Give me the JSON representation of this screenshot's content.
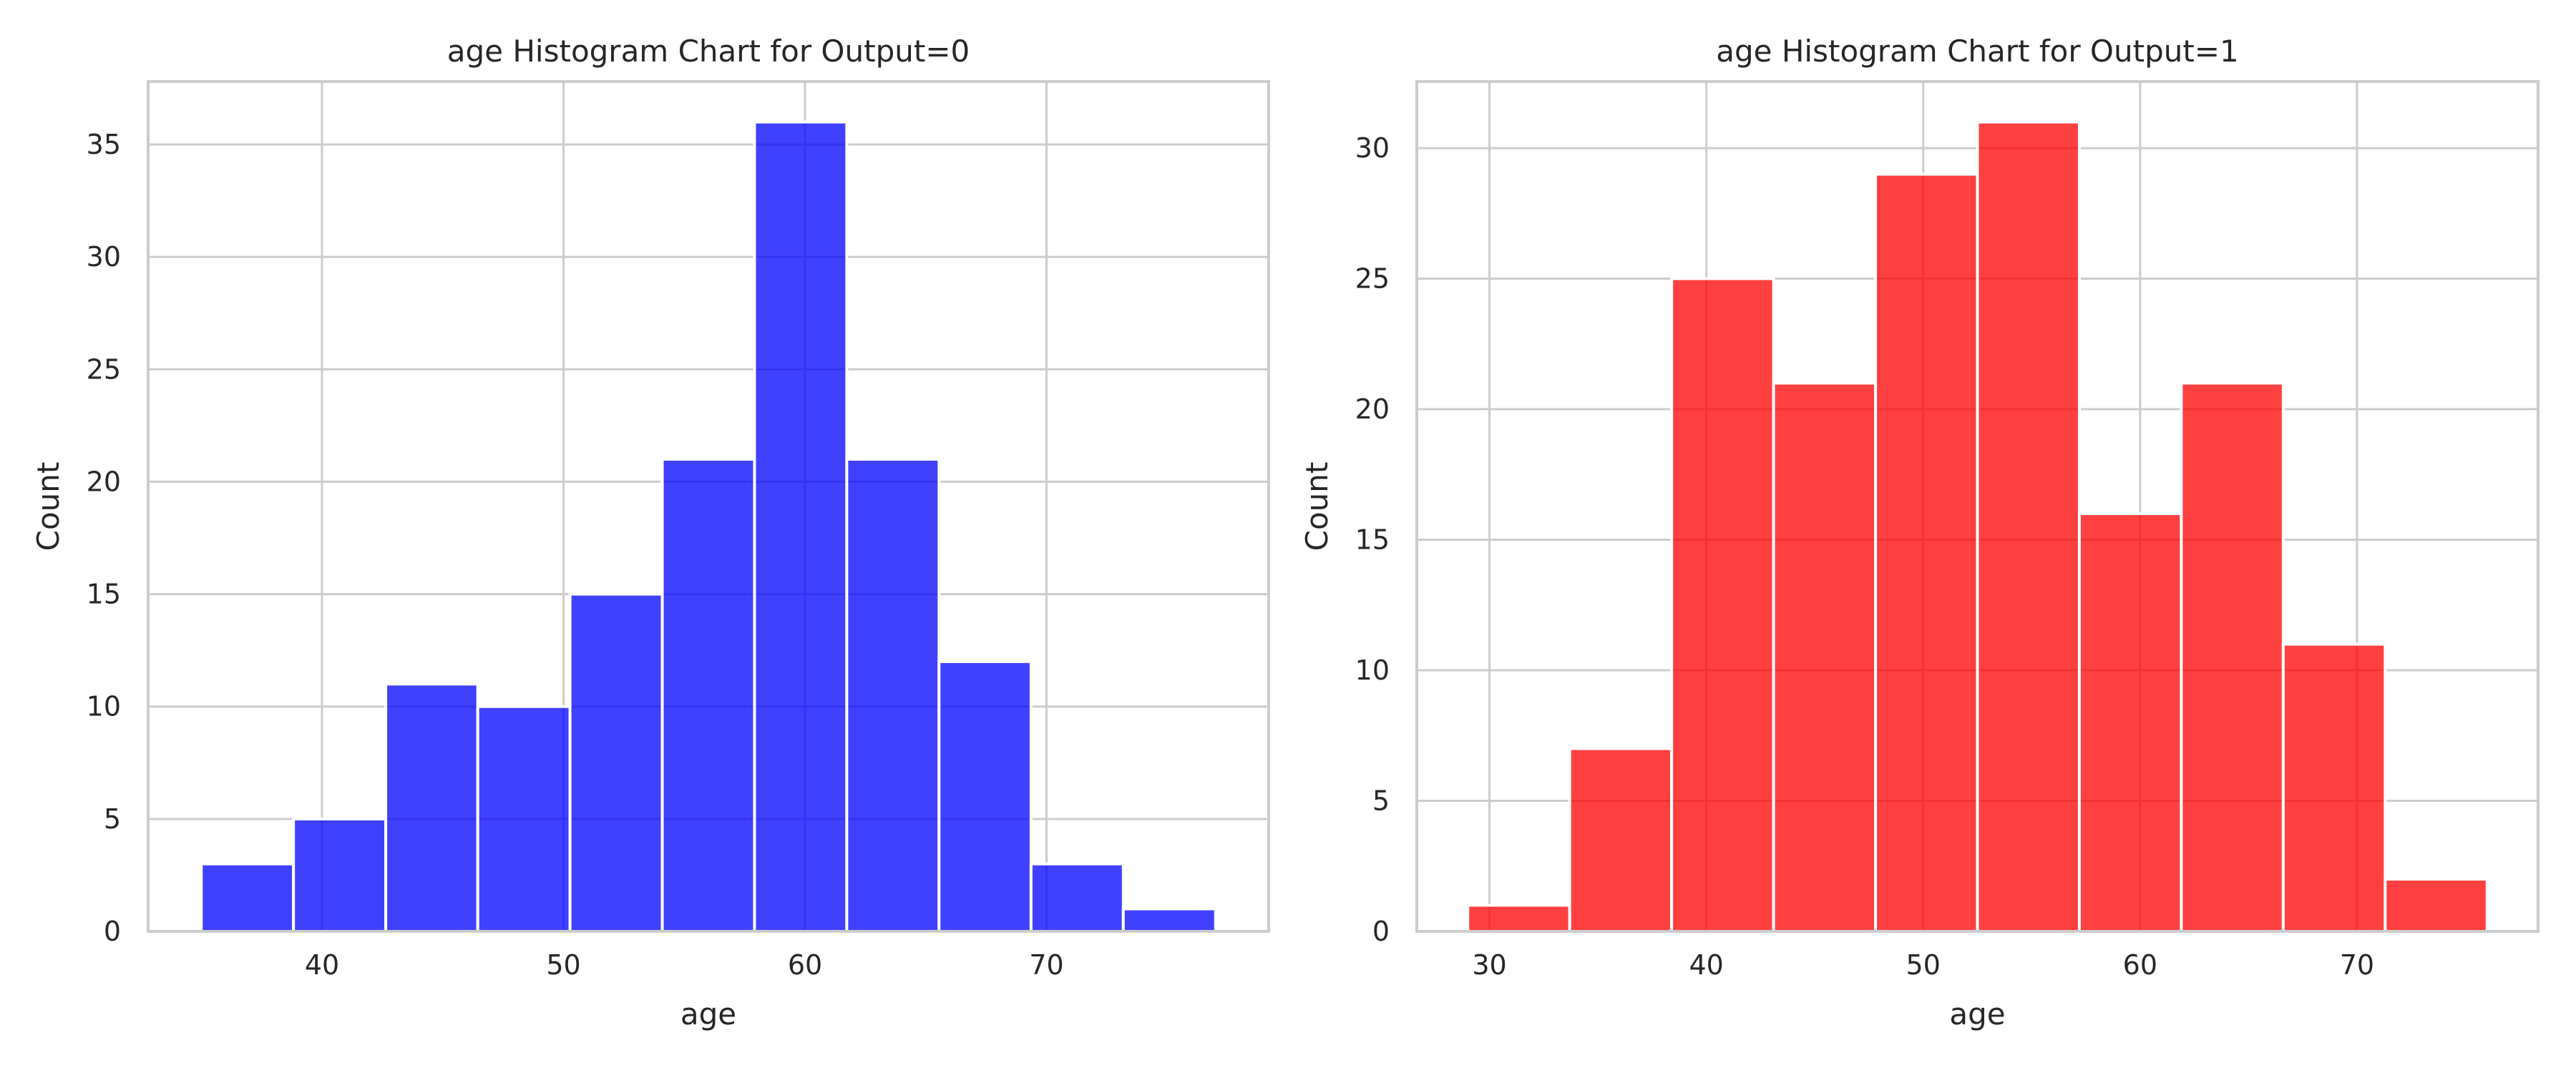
{
  "chart_data": [
    {
      "type": "bar",
      "title": "age Histogram Chart for Output=0",
      "xlabel": "age",
      "ylabel": "Count",
      "xlim": [
        32.8,
        79.2
      ],
      "ylim": [
        0,
        37.8
      ],
      "xticks": [
        40,
        50,
        60,
        70
      ],
      "yticks": [
        0,
        5,
        10,
        15,
        20,
        25,
        30,
        35
      ],
      "grid": true,
      "color": "#0000ff",
      "bin_edges": [
        35,
        38.82,
        42.64,
        46.45,
        50.27,
        54.09,
        57.91,
        61.73,
        65.55,
        69.36,
        73.18,
        77
      ],
      "values": [
        3,
        5,
        11,
        10,
        15,
        21,
        36,
        21,
        12,
        3,
        1
      ]
    },
    {
      "type": "bar",
      "title": "age Histogram Chart for Output=1",
      "xlabel": "age",
      "ylabel": "Count",
      "xlim": [
        26.65,
        78.35
      ],
      "ylim": [
        0,
        32.55
      ],
      "xticks": [
        30,
        40,
        50,
        60,
        70
      ],
      "yticks": [
        0,
        5,
        10,
        15,
        20,
        25,
        30
      ],
      "grid": true,
      "color": "#ff0000",
      "bin_edges": [
        29,
        33.7,
        38.4,
        43.1,
        47.8,
        52.5,
        57.2,
        61.9,
        66.6,
        71.3,
        76
      ],
      "values": [
        1,
        7,
        25,
        21,
        29,
        31,
        16,
        21,
        11,
        2
      ]
    }
  ]
}
